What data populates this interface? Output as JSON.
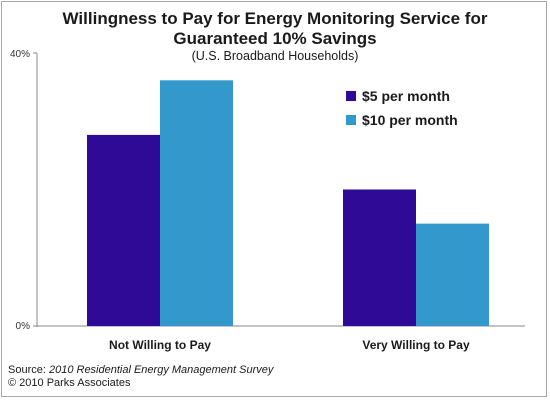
{
  "chart_data": {
    "type": "bar",
    "title": "Willingness to Pay for Energy Monitoring Service for Guaranteed 10% Savings",
    "title_line1": "Willingness to Pay for Energy Monitoring Service for",
    "title_line2": "Guaranteed 10% Savings",
    "subtitle": "(U.S. Broadband Households)",
    "categories": [
      "Not Willing to Pay",
      "Very Willing to Pay"
    ],
    "series": [
      {
        "name": "$5 per month",
        "values": [
          28,
          20
        ],
        "color": "#2e0a96"
      },
      {
        "name": "$10 per month",
        "values": [
          36,
          15
        ],
        "color": "#3399cc"
      }
    ],
    "ylim": [
      0,
      40
    ],
    "ytick_labels": [
      "0%",
      "40%"
    ],
    "xlabel": "",
    "ylabel": "",
    "grid": false,
    "legend_position": "top-right"
  },
  "source": {
    "prefix": "Source: ",
    "title": "2010 Residential Energy Management Survey",
    "copyright": "© 2010 Parks Associates"
  }
}
